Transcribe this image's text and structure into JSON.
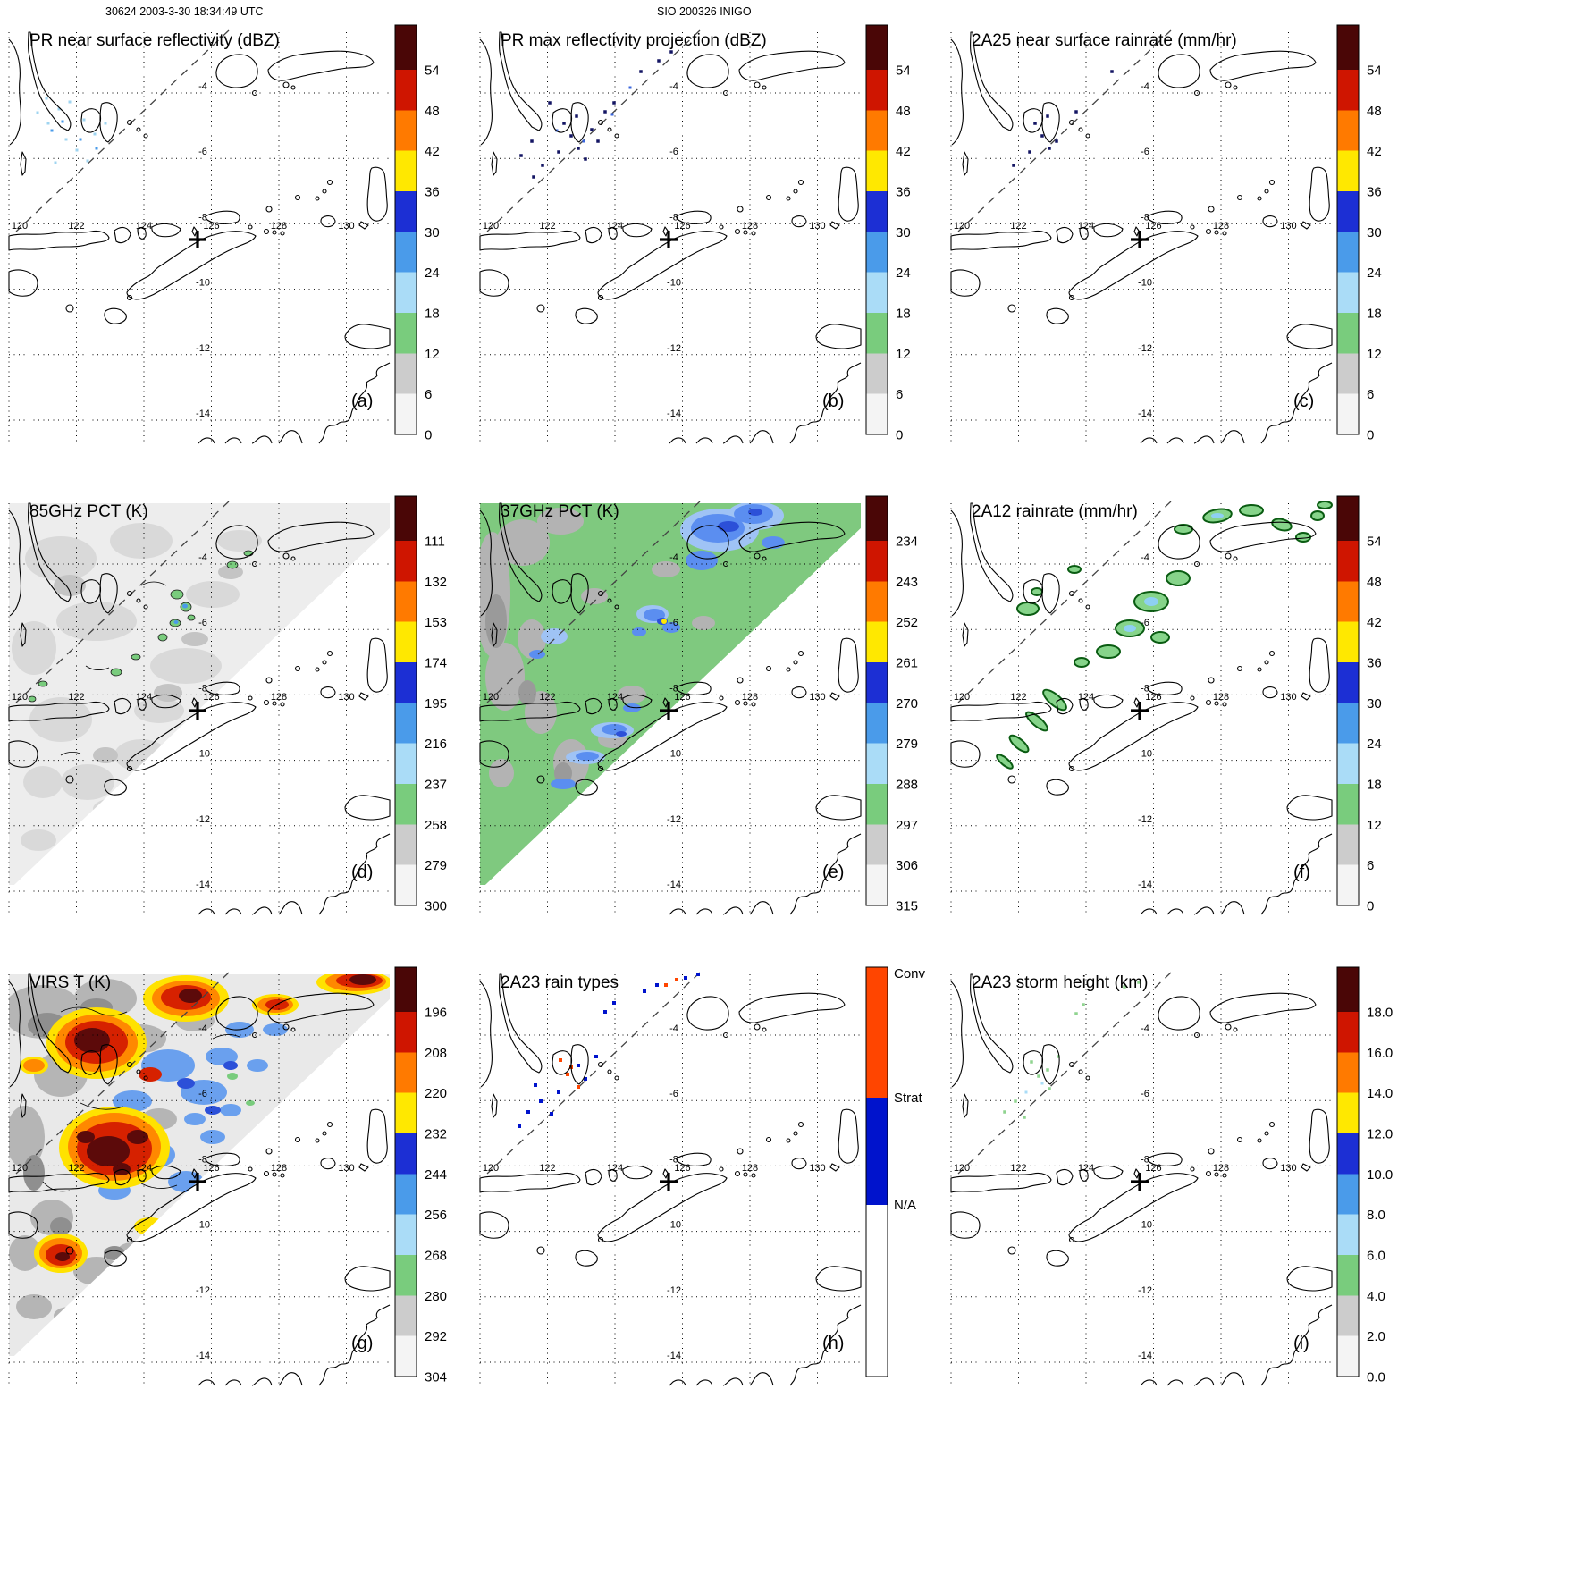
{
  "header": {
    "left": "30624 2003-3-30 18:34:49 UTC",
    "center": "SIO 200326 INIGO"
  },
  "axes": {
    "lon_labels": [
      "120",
      "122",
      "124",
      "126",
      "128",
      "130"
    ],
    "lat_labels": [
      "-4",
      "-6",
      "-8",
      "-10",
      "-12",
      "-14"
    ]
  },
  "colors": {
    "ramp_top_to_bottom": [
      "#4a0606",
      "#cf1500",
      "#ff7a00",
      "#ffe800",
      "#1c2fd4",
      "#4a9bea",
      "#aadcf7",
      "#79cc7d",
      "#cccccc",
      "#f4f4f4"
    ],
    "conv": "#ff4500",
    "strat": "#0013cc",
    "na": "#ffffff"
  },
  "panels": [
    {
      "id": "a",
      "title": "PR near surface reflectivity (dBZ)",
      "letter": "(a)",
      "colorbar": {
        "kind": "ramp",
        "labels": [
          "54",
          "48",
          "42",
          "36",
          "30",
          "24",
          "18",
          "12",
          "6",
          "0"
        ]
      }
    },
    {
      "id": "b",
      "title": "PR max reflectivity projection (dBZ)",
      "letter": "(b)",
      "colorbar": {
        "kind": "ramp",
        "labels": [
          "54",
          "48",
          "42",
          "36",
          "30",
          "24",
          "18",
          "12",
          "6",
          "0"
        ]
      }
    },
    {
      "id": "c",
      "title": "2A25 near surface rainrate (mm/hr)",
      "letter": "(c)",
      "colorbar": {
        "kind": "ramp",
        "labels": [
          "54",
          "48",
          "42",
          "36",
          "30",
          "24",
          "18",
          "12",
          "6",
          "0"
        ]
      }
    },
    {
      "id": "d",
      "title": "85GHz PCT (K)",
      "letter": "(d)",
      "colorbar": {
        "kind": "ramp",
        "labels": [
          "111",
          "132",
          "153",
          "174",
          "195",
          "216",
          "237",
          "258",
          "279",
          "300"
        ]
      }
    },
    {
      "id": "e",
      "title": "37GHz PCT (K)",
      "letter": "(e)",
      "colorbar": {
        "kind": "ramp",
        "labels": [
          "234",
          "243",
          "252",
          "261",
          "270",
          "279",
          "288",
          "297",
          "306",
          "315"
        ]
      }
    },
    {
      "id": "f",
      "title": "2A12 rainrate (mm/hr)",
      "letter": "(f)",
      "colorbar": {
        "kind": "ramp",
        "labels": [
          "54",
          "48",
          "42",
          "36",
          "30",
          "24",
          "18",
          "12",
          "6",
          "0"
        ]
      }
    },
    {
      "id": "g",
      "title": "VIRS T (K)",
      "letter": "(g)",
      "colorbar": {
        "kind": "ramp",
        "labels": [
          "196",
          "208",
          "220",
          "232",
          "244",
          "256",
          "268",
          "280",
          "292",
          "304"
        ]
      }
    },
    {
      "id": "h",
      "title": "2A23 rain types",
      "letter": "(h)",
      "colorbar": {
        "kind": "raintype",
        "labels": [
          "Conv",
          "Strat",
          "N/A"
        ]
      }
    },
    {
      "id": "i",
      "title": "2A23 storm height (km)",
      "letter": "(i)",
      "colorbar": {
        "kind": "ramp",
        "labels": [
          "18.0",
          "16.0",
          "14.0",
          "12.0",
          "10.0",
          "8.0",
          "6.0",
          "4.0",
          "2.0",
          "0.0"
        ]
      }
    }
  ],
  "chart_data": [
    {
      "type": "heatmap",
      "panel": "(a)",
      "title": "PR near surface reflectivity (dBZ)",
      "units": "dBZ",
      "colorbar_ticks": [
        0,
        6,
        12,
        18,
        24,
        30,
        36,
        42,
        48,
        54
      ],
      "lon_ticks": [
        120,
        122,
        124,
        126,
        128,
        130
      ],
      "lat_ticks": [
        -4,
        -6,
        -8,
        -10,
        -12,
        -14
      ],
      "extent_lon": [
        120,
        131.3
      ],
      "extent_lat": [
        -14.7,
        -2.1
      ],
      "marker_lonlat": [
        125.6,
        -8.6
      ],
      "depicted": "sparse weak echoes (18-30 dBZ) northwest of dashed PR swath edge; rest echo-free"
    },
    {
      "type": "heatmap",
      "panel": "(b)",
      "title": "PR max reflectivity projection (dBZ)",
      "units": "dBZ",
      "colorbar_ticks": [
        0,
        6,
        12,
        18,
        24,
        30,
        36,
        42,
        48,
        54
      ],
      "lon_ticks": [
        120,
        122,
        124,
        126,
        128,
        130
      ],
      "lat_ticks": [
        -4,
        -6,
        -8,
        -10,
        -12,
        -14
      ],
      "depicted": "scattered small 24-36 dBZ echoes in upper-left swath region"
    },
    {
      "type": "heatmap",
      "panel": "(c)",
      "title": "2A25 near surface rainrate (mm/hr)",
      "units": "mm/hr",
      "colorbar_ticks": [
        0,
        6,
        12,
        18,
        24,
        30,
        36,
        42,
        48,
        54
      ],
      "lon_ticks": [
        120,
        122,
        124,
        126,
        128,
        130
      ],
      "lat_ticks": [
        -4,
        -6,
        -8,
        -10,
        -12,
        -14
      ],
      "depicted": "sparse light-rain pixels in upper-left swath region"
    },
    {
      "type": "heatmap",
      "panel": "(d)",
      "title": "85GHz PCT (K)",
      "units": "K",
      "colorbar_ticks": [
        111,
        132,
        153,
        174,
        195,
        216,
        237,
        258,
        279,
        300
      ],
      "lon_ticks": [
        120,
        122,
        124,
        126,
        128,
        130
      ],
      "lat_ticks": [
        -4,
        -6,
        -8,
        -10,
        -12,
        -14
      ],
      "depicted": "TMI swath (upper-left triangle) mostly 258-300 K (gray/white) with scattered 195-237 K ice-scattering cells (green/blue)"
    },
    {
      "type": "heatmap",
      "panel": "(e)",
      "title": "37GHz PCT (K)",
      "units": "K",
      "colorbar_ticks": [
        234,
        243,
        252,
        261,
        270,
        279,
        288,
        297,
        306,
        315
      ],
      "lon_ticks": [
        120,
        122,
        124,
        126,
        128,
        130
      ],
      "lat_ticks": [
        -4,
        -6,
        -8,
        -10,
        -12,
        -14
      ],
      "depicted": "swath mostly 279-297 K (green) with warmer gray patches and 252-270 K blue cells; one ~261 K yellow pixel"
    },
    {
      "type": "heatmap",
      "panel": "(f)",
      "title": "2A12 rainrate (mm/hr)",
      "units": "mm/hr",
      "colorbar_ticks": [
        0,
        6,
        12,
        18,
        24,
        30,
        36,
        42,
        48,
        54
      ],
      "lon_ticks": [
        120,
        122,
        124,
        126,
        128,
        130
      ],
      "lat_ticks": [
        -4,
        -6,
        -8,
        -10,
        -12,
        -14
      ],
      "depicted": "scattered contour-outlined rain cells 6-24 mm/hr across upper half of swath"
    },
    {
      "type": "heatmap",
      "panel": "(g)",
      "title": "VIRS T (K)",
      "units": "K",
      "colorbar_ticks": [
        196,
        208,
        220,
        232,
        244,
        256,
        268,
        280,
        292,
        304
      ],
      "lon_ticks": [
        120,
        122,
        124,
        126,
        128,
        130
      ],
      "lat_ticks": [
        -4,
        -6,
        -8,
        -10,
        -12,
        -14
      ],
      "depicted": "cold cloud tops 196-232 K (dark red/red/orange/yellow) embedded in 244-304 K (blue/gray) field over upper-left triangle"
    },
    {
      "type": "heatmap",
      "panel": "(h)",
      "title": "2A23 rain types",
      "units": "category",
      "categories": [
        "Conv",
        "Strat",
        "N/A"
      ],
      "lon_ticks": [
        120,
        122,
        124,
        126,
        128,
        130
      ],
      "lat_ticks": [
        -4,
        -6,
        -8,
        -10,
        -12,
        -14
      ],
      "depicted": "sparse convective (orange) and stratiform (blue) pixels in upper-left swath"
    },
    {
      "type": "heatmap",
      "panel": "(i)",
      "title": "2A23 storm height (km)",
      "units": "km",
      "colorbar_ticks": [
        0,
        2,
        4,
        6,
        8,
        10,
        12,
        14,
        16,
        18
      ],
      "lon_ticks": [
        120,
        122,
        124,
        126,
        128,
        130
      ],
      "lat_ticks": [
        -4,
        -6,
        -8,
        -10,
        -12,
        -14
      ],
      "depicted": "sparse echo-top heights of 2-6 km (green) in upper-left swath"
    }
  ]
}
